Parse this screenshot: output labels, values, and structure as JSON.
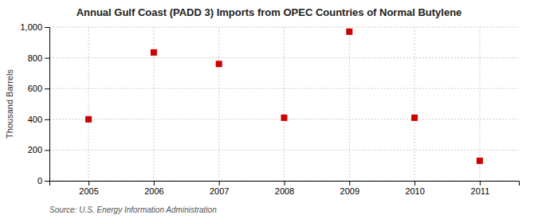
{
  "chart_data": {
    "type": "scatter",
    "title": "Annual Gulf Coast (PADD 3) Imports from OPEC Countries of Normal Butylene",
    "ylabel": "Thousand Barrels",
    "source": "Source: U.S. Energy Information Administration",
    "x": [
      2005,
      2006,
      2007,
      2008,
      2009,
      2010,
      2011
    ],
    "values": [
      400,
      835,
      760,
      410,
      970,
      410,
      130
    ],
    "xlim": [
      2004.4,
      2011.6
    ],
    "xticks": [
      2005,
      2006,
      2007,
      2008,
      2009,
      2010,
      2011
    ],
    "ylim": [
      0,
      1000
    ],
    "yticks": [
      0,
      200,
      400,
      600,
      800,
      {
        "value": 1000,
        "label": "1,000"
      }
    ],
    "color": "#cc0000",
    "marker": "square",
    "grid": true
  }
}
